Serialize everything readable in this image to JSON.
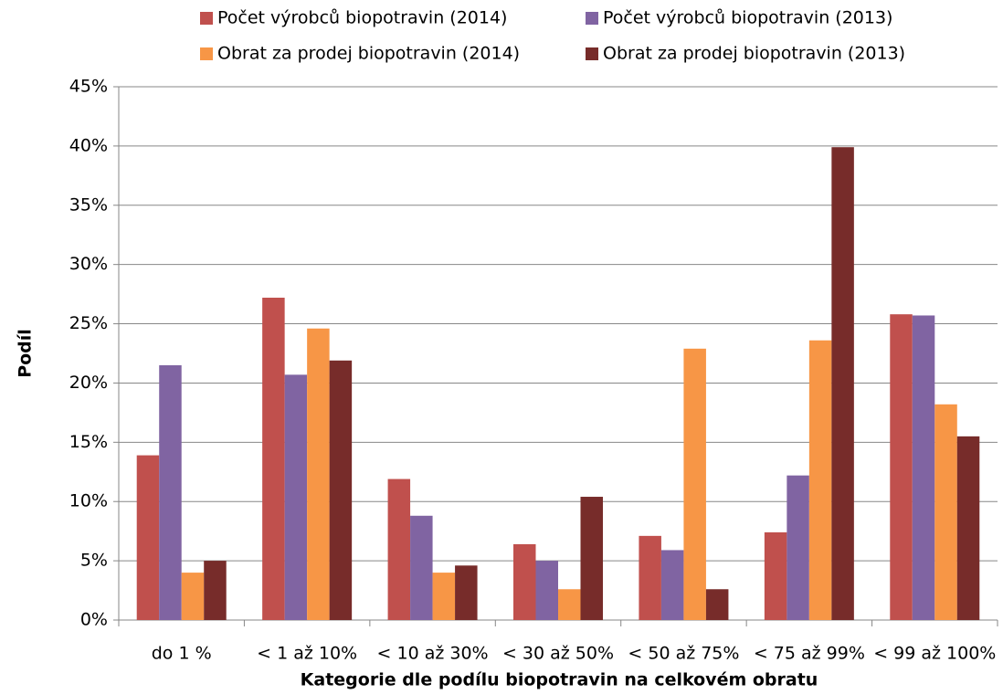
{
  "chart_data": {
    "type": "bar",
    "xlabel": "Kategorie dle podílu biopotravin na celkovém obratu",
    "ylabel": "Podíl",
    "categories": [
      "do 1 %",
      "< 1 až 10%",
      "< 10 až 30%",
      "< 30 až 50%",
      "< 50 až 75%",
      "< 75 až 99%",
      "< 99 až 100%"
    ],
    "series": [
      {
        "name": "Počet výrobců biopotravin (2014)",
        "color": "#c0504d",
        "values": [
          13.9,
          27.2,
          11.9,
          6.4,
          7.1,
          7.4,
          25.8
        ]
      },
      {
        "name": "Počet výrobců biopotravin (2013)",
        "color": "#8064a2",
        "values": [
          21.5,
          20.7,
          8.8,
          5.0,
          5.9,
          12.2,
          25.7
        ]
      },
      {
        "name": "Obrat za prodej biopotravin (2014)",
        "color": "#f79646",
        "values": [
          4.0,
          24.6,
          4.0,
          2.6,
          22.9,
          23.6,
          18.2
        ]
      },
      {
        "name": "Obrat za prodej biopotravin (2013)",
        "color": "#772c2a",
        "values": [
          5.0,
          21.9,
          4.6,
          10.4,
          2.6,
          39.9,
          15.5
        ]
      }
    ],
    "ylim": [
      0,
      45
    ],
    "yticks": [
      {
        "value": 0,
        "label": "0%"
      },
      {
        "value": 5,
        "label": "5%"
      },
      {
        "value": 10,
        "label": "10%"
      },
      {
        "value": 15,
        "label": "15%"
      },
      {
        "value": 20,
        "label": "20%"
      },
      {
        "value": 25,
        "label": "25%"
      },
      {
        "value": 30,
        "label": "30%"
      },
      {
        "value": 35,
        "label": "35%"
      },
      {
        "value": 40,
        "label": "40%"
      },
      {
        "value": 45,
        "label": "45%"
      }
    ],
    "grid": true,
    "legend": "top"
  }
}
